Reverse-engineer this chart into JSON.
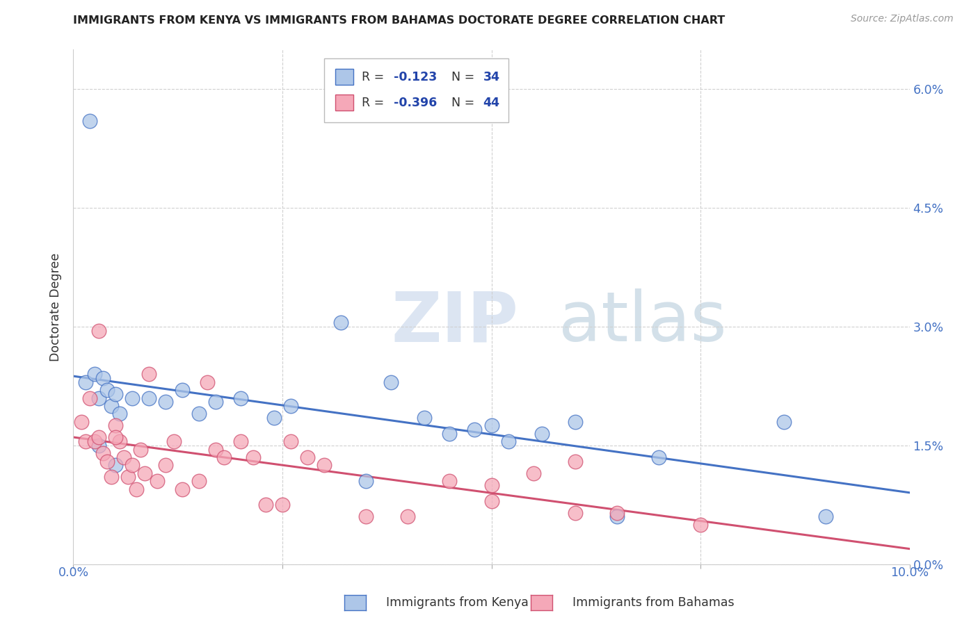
{
  "title": "IMMIGRANTS FROM KENYA VS IMMIGRANTS FROM BAHAMAS DOCTORATE DEGREE CORRELATION CHART",
  "source": "Source: ZipAtlas.com",
  "ylabel": "Doctorate Degree",
  "ylabel_right_vals": [
    0.0,
    1.5,
    3.0,
    4.5,
    6.0
  ],
  "xlim": [
    0.0,
    10.0
  ],
  "ylim": [
    0.0,
    6.5
  ],
  "kenya_color": "#adc6e8",
  "bahamas_color": "#f5a8b8",
  "kenya_line_color": "#4472C4",
  "bahamas_line_color": "#D05070",
  "kenya_scatter_x": [
    0.15,
    0.25,
    0.3,
    0.35,
    0.4,
    0.45,
    0.5,
    0.55,
    0.7,
    0.9,
    1.1,
    1.3,
    1.5,
    1.7,
    2.0,
    2.4,
    2.6,
    3.2,
    3.8,
    4.2,
    4.8,
    5.0,
    5.6,
    6.0,
    7.0,
    8.5,
    9.0,
    0.2,
    0.3,
    0.5,
    3.5,
    4.5,
    5.2,
    6.5
  ],
  "kenya_scatter_y": [
    2.3,
    2.4,
    2.1,
    2.35,
    2.2,
    2.0,
    2.15,
    1.9,
    2.1,
    2.1,
    2.05,
    2.2,
    1.9,
    2.05,
    2.1,
    1.85,
    2.0,
    3.05,
    2.3,
    1.85,
    1.7,
    1.75,
    1.65,
    1.8,
    1.35,
    1.8,
    0.6,
    5.6,
    1.5,
    1.25,
    1.05,
    1.65,
    1.55,
    0.6
  ],
  "bahamas_scatter_x": [
    0.1,
    0.15,
    0.2,
    0.25,
    0.3,
    0.35,
    0.4,
    0.45,
    0.5,
    0.55,
    0.6,
    0.65,
    0.7,
    0.75,
    0.8,
    0.85,
    0.9,
    1.0,
    1.1,
    1.2,
    1.3,
    1.5,
    1.6,
    1.7,
    1.8,
    2.0,
    2.15,
    2.3,
    2.5,
    2.6,
    2.8,
    3.0,
    3.5,
    4.0,
    4.5,
    5.0,
    5.5,
    6.0,
    6.5,
    7.5,
    0.3,
    0.5,
    5.0,
    6.0
  ],
  "bahamas_scatter_y": [
    1.8,
    1.55,
    2.1,
    1.55,
    1.6,
    1.4,
    1.3,
    1.1,
    1.75,
    1.55,
    1.35,
    1.1,
    1.25,
    0.95,
    1.45,
    1.15,
    2.4,
    1.05,
    1.25,
    1.55,
    0.95,
    1.05,
    2.3,
    1.45,
    1.35,
    1.55,
    1.35,
    0.75,
    0.75,
    1.55,
    1.35,
    1.25,
    0.6,
    0.6,
    1.05,
    1.0,
    1.15,
    1.3,
    0.65,
    0.5,
    2.95,
    1.6,
    0.8,
    0.65
  ],
  "watermark_zip": "ZIP",
  "watermark_atlas": "atlas",
  "background_color": "#ffffff",
  "grid_color": "#d0d0d0",
  "legend_r_color": "#2244aa",
  "legend_n_color": "#2244aa"
}
